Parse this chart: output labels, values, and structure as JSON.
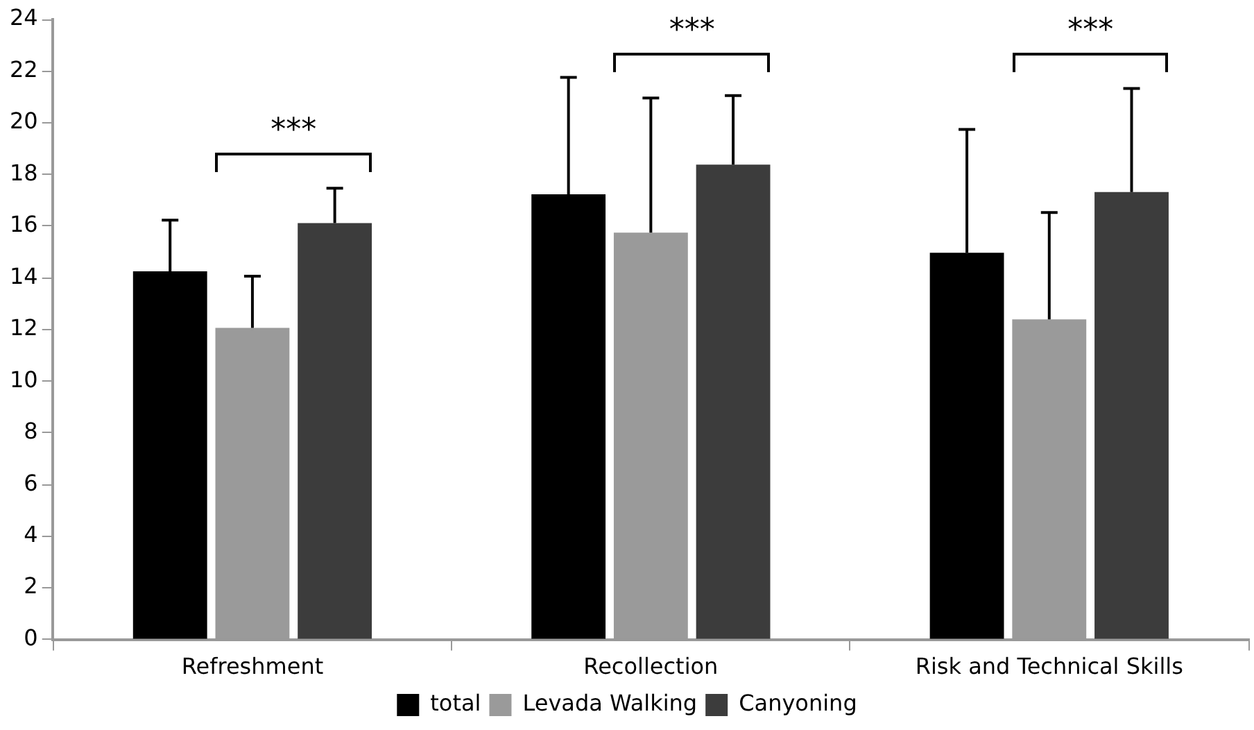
{
  "chart_data": {
    "type": "bar",
    "categories": [
      "Refreshment",
      "Recollection",
      "Risk and Technical Skills"
    ],
    "series": [
      {
        "name": "total",
        "color": "#000000",
        "values": [
          14.25,
          17.23,
          14.97
        ],
        "errors": [
          [
            14.25,
            16.23
          ],
          [
            17.23,
            21.76
          ],
          [
            14.97,
            19.74
          ]
        ]
      },
      {
        "name": "Levada Walking",
        "color": "#9a9a9a",
        "values": [
          12.06,
          15.75,
          12.39
        ],
        "errors": [
          [
            12.06,
            14.06
          ],
          [
            15.75,
            20.96
          ],
          [
            12.39,
            16.53
          ]
        ]
      },
      {
        "name": "Canyoning",
        "color": "#3c3c3c",
        "values": [
          16.12,
          18.38,
          17.32
        ],
        "errors": [
          [
            16.12,
            17.47
          ],
          [
            18.38,
            21.05
          ],
          [
            17.32,
            21.33
          ]
        ]
      }
    ],
    "ylim": [
      0,
      24
    ],
    "yticks": [
      0,
      2,
      4,
      6,
      8,
      10,
      12,
      14,
      16,
      18,
      20,
      22,
      24
    ],
    "grid": false,
    "legend": "bottom",
    "annotations": [
      "***",
      "***",
      "***"
    ]
  }
}
